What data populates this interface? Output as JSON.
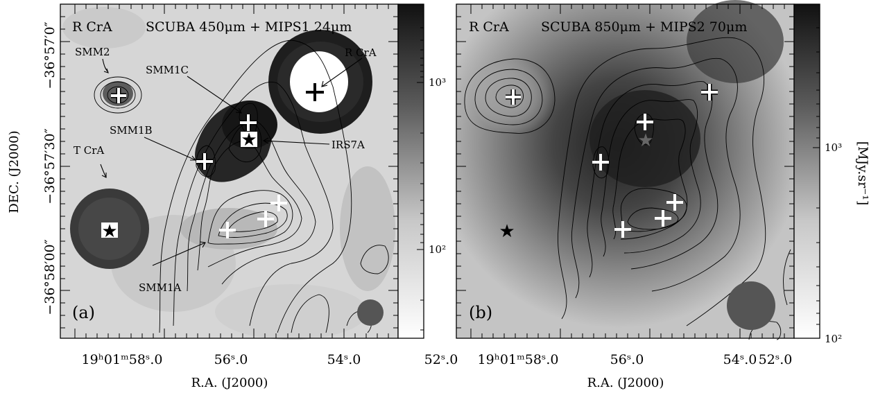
{
  "figure": {
    "ylabel": "DEC. (J2000)",
    "colorbar_label": "[MJy.sr⁻¹]",
    "panel_a": {
      "object": "R CrA",
      "title": "SCUBA 450μm + MIPS1 24μm",
      "tag": "(a)",
      "xlabel": "R.A. (J2000)",
      "x_ticks": [
        "19ʰ01ᵐ58ˢ.0",
        "56ˢ.0",
        "54ˢ.0",
        "52ˢ.0"
      ],
      "y_ticks": [
        "−36°57′0″",
        "−36°57′30″",
        "−36°58′00″"
      ],
      "colorbar_ticks": [
        "10³",
        "10²"
      ],
      "annotations": {
        "smm2": "SMM2",
        "smm1c": "SMM1C",
        "smm1b": "SMM1B",
        "tcra": "T CrA",
        "rcra": "R CrA",
        "irs7a": "IRS7A",
        "smm1a": "SMM1A"
      }
    },
    "panel_b": {
      "object": "R CrA",
      "title": "SCUBA 850μm + MIPS2 70μm",
      "tag": "(b)",
      "xlabel": "R.A. (J2000)",
      "x_ticks": [
        "19ʰ01ᵐ58ˢ.0",
        "56ˢ.0",
        "54ˢ.0",
        "52ˢ.0"
      ],
      "colorbar_ticks": [
        "10³",
        "10²"
      ]
    }
  }
}
